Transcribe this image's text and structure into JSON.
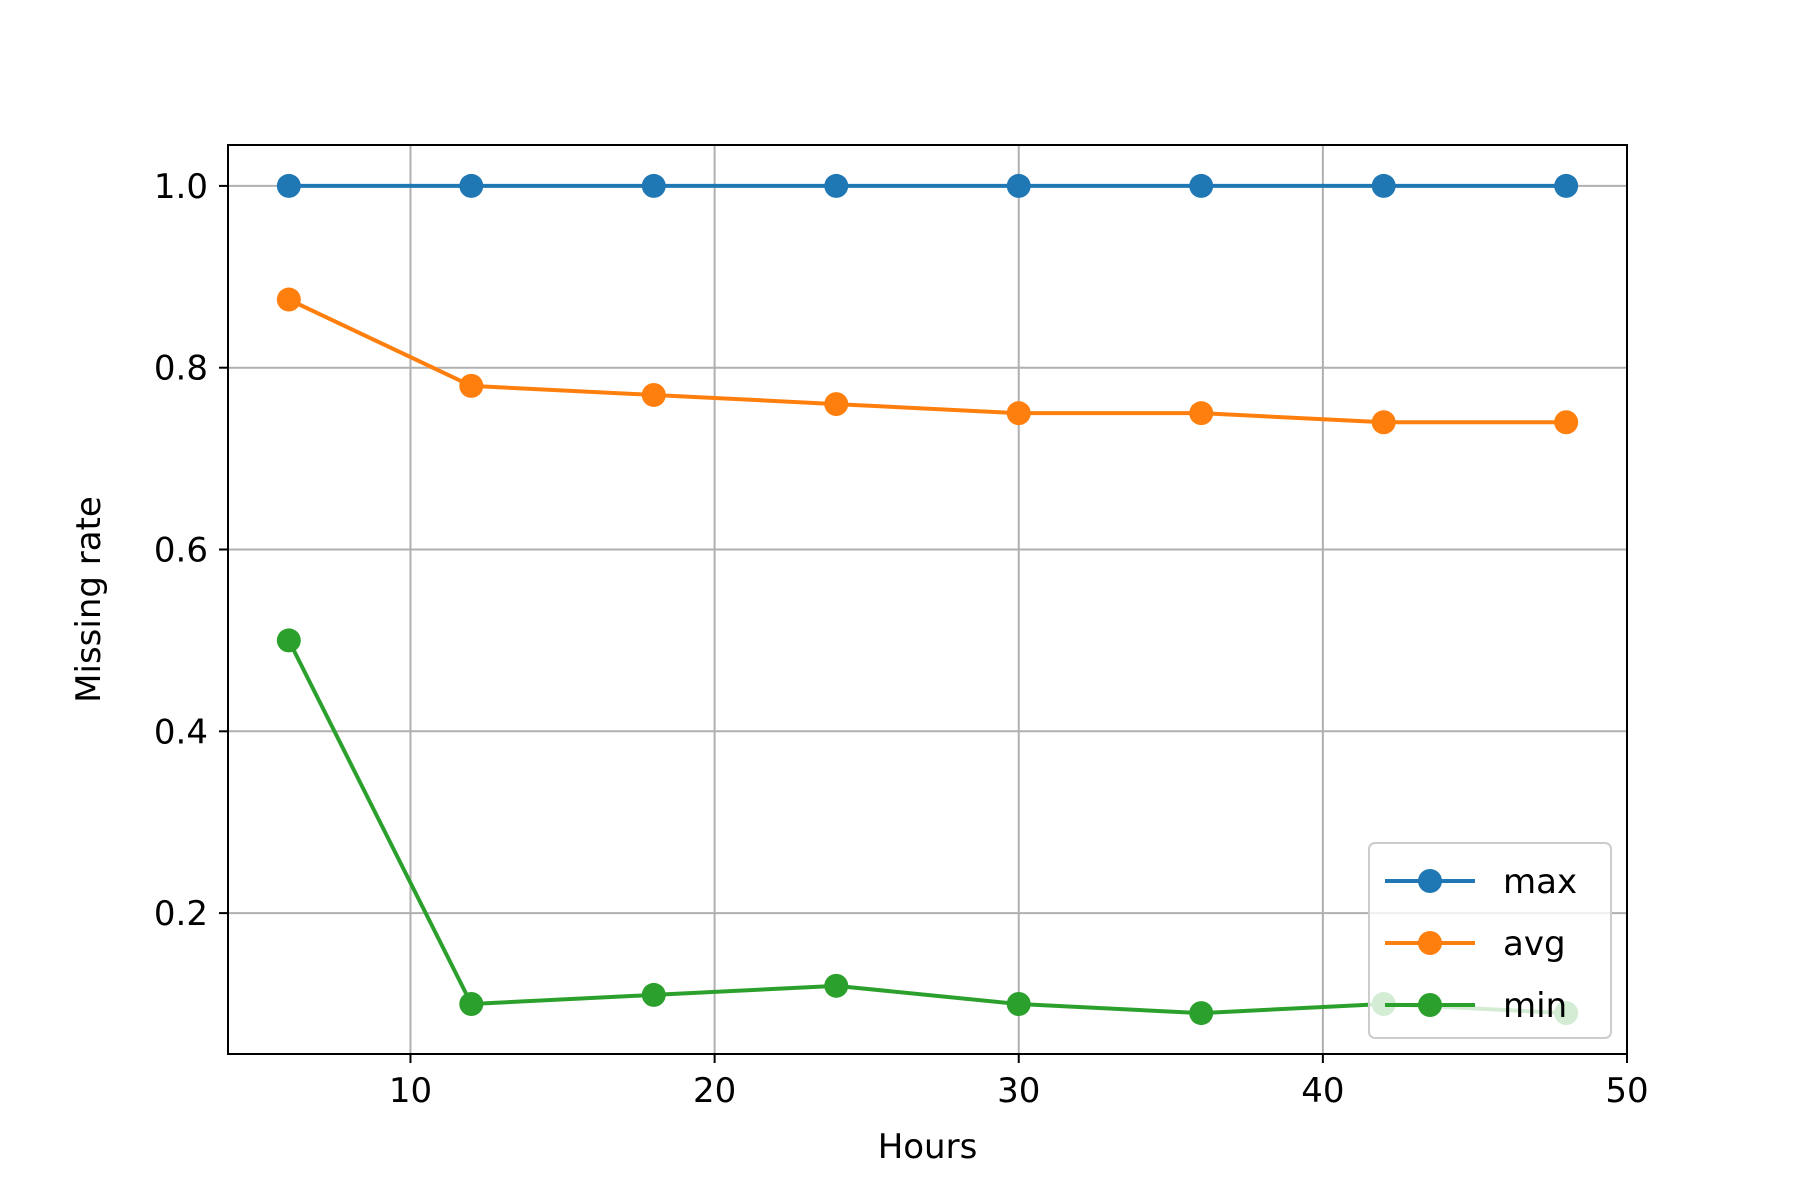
{
  "chart_data": {
    "type": "line",
    "title": "",
    "xlabel": "Hours",
    "ylabel": "Missing rate",
    "xlim": [
      4,
      50
    ],
    "ylim": [
      0.045,
      1.045
    ],
    "xticks": [
      10,
      20,
      30,
      40,
      50
    ],
    "xtick_labels": [
      "10",
      "20",
      "30",
      "40",
      "50"
    ],
    "yticks": [
      0.2,
      0.4,
      0.6,
      0.8,
      1.0
    ],
    "ytick_labels": [
      "0.2",
      "0.4",
      "0.6",
      "0.8",
      "1.0"
    ],
    "grid": true,
    "legend_position": "lower-right",
    "x": [
      6,
      12,
      18,
      24,
      30,
      36,
      42,
      48
    ],
    "series": [
      {
        "name": "max",
        "color": "#1f77b4",
        "values": [
          1.0,
          1.0,
          1.0,
          1.0,
          1.0,
          1.0,
          1.0,
          1.0
        ]
      },
      {
        "name": "avg",
        "color": "#ff7f0e",
        "values": [
          0.875,
          0.78,
          0.77,
          0.76,
          0.75,
          0.75,
          0.74,
          0.74
        ]
      },
      {
        "name": "min",
        "color": "#2ca02c",
        "values": [
          0.5,
          0.1,
          0.11,
          0.12,
          0.1,
          0.09,
          0.1,
          0.09
        ]
      }
    ]
  }
}
